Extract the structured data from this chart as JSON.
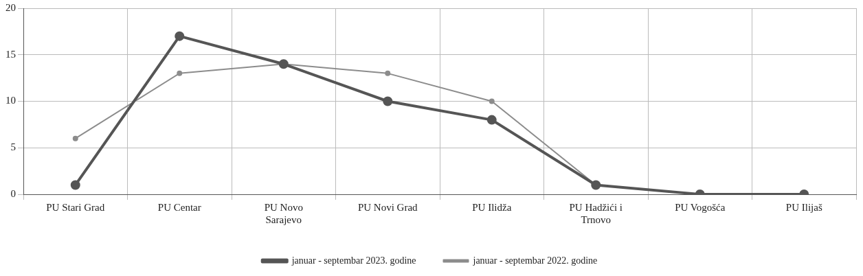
{
  "chart_data": {
    "type": "line",
    "categories": [
      "PU Stari Grad",
      "PU Centar",
      "PU Novo Sarajevo",
      "PU Novi Grad",
      "PU Ilidža",
      "PU Hadžići i Trnovo",
      "PU Vogošća",
      "PU Ilijaš"
    ],
    "series": [
      {
        "name": "januar - septembar 2023. godine",
        "color": "#555555",
        "values": [
          1,
          17,
          14,
          10,
          8,
          1,
          0,
          0
        ]
      },
      {
        "name": "januar - septembar 2022. godine",
        "color": "#8c8c8c",
        "values": [
          6,
          13,
          14,
          13,
          10,
          1,
          0,
          0
        ]
      }
    ],
    "ylim": [
      0,
      20
    ],
    "yticks": [
      0,
      5,
      10,
      15,
      20
    ],
    "grid": true,
    "legend": "bottom",
    "marker": "circle",
    "line_style": "solid"
  }
}
